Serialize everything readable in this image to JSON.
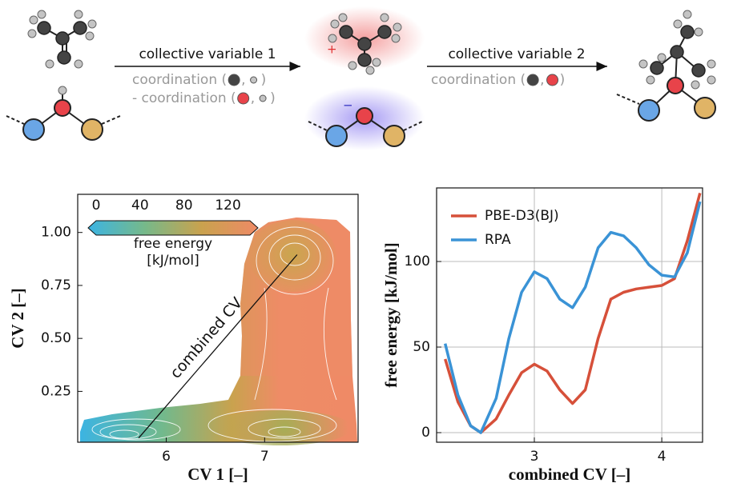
{
  "scheme": {
    "step1": {
      "label": "collective variable 1",
      "terms": [
        {
          "prefix": "coordination (",
          "sep": ",",
          "suffix": ")"
        },
        {
          "prefix": "- coordination (",
          "sep": ",",
          "suffix": ")"
        }
      ]
    },
    "step2": {
      "label": "collective variable 2",
      "terms": [
        {
          "prefix": "coordination (",
          "sep": ",",
          "suffix": ")"
        }
      ]
    },
    "charges": [
      "+",
      "−"
    ]
  },
  "chart_data": [
    {
      "type": "contour",
      "xlabel": "CV 1 [–]",
      "ylabel": "CV 2 [–]",
      "xlim": [
        5.1,
        7.95
      ],
      "ylim": [
        0.01,
        1.18
      ],
      "xticks": [
        6,
        7
      ],
      "yticks": [
        0.25,
        {
          "value": 0.5,
          "label": "0.50"
        },
        0.75,
        {
          "value": 1,
          "label": "1.00"
        }
      ],
      "colorbar": {
        "range": [
          0,
          140
        ],
        "ticks": [
          0,
          40,
          80,
          120
        ],
        "label": [
          "free energy",
          "[kJ/mol]"
        ],
        "colors": [
          "#3cb4e2",
          "#76b98a",
          "#c9a24e",
          "#ef8a66"
        ]
      },
      "annotation": {
        "text": "combined CV",
        "from": [
          5.72,
          0.03
        ],
        "to": [
          7.33,
          0.895
        ]
      }
    },
    {
      "type": "line",
      "xlabel": "combined CV [–]",
      "ylabel": "free energy [kJ/mol]",
      "xlim": [
        2.233,
        4.32
      ],
      "ylim": [
        -5.6,
        143
      ],
      "xticks": [
        3,
        4
      ],
      "yticks": [
        0,
        50,
        100
      ],
      "grid": true,
      "legend": "upper-left",
      "x": [
        2.3,
        2.4,
        2.5,
        2.58,
        2.7,
        2.8,
        2.9,
        3.0,
        3.1,
        3.2,
        3.3,
        3.4,
        3.5,
        3.6,
        3.7,
        3.8,
        3.9,
        4.0,
        4.1,
        4.2,
        4.3
      ],
      "series": [
        {
          "name": "PBE-D3(BJ)",
          "color": "#d6503a",
          "values": [
            43,
            18,
            4,
            0,
            8,
            22,
            35,
            40,
            36,
            25,
            17,
            25,
            55,
            78,
            82,
            84,
            85,
            86,
            90,
            112,
            140
          ]
        },
        {
          "name": "RPA",
          "color": "#3a93d6",
          "values": [
            52,
            22,
            4,
            0,
            20,
            55,
            82,
            94,
            90,
            78,
            73,
            85,
            108,
            117,
            115,
            108,
            98,
            92,
            91,
            105,
            135
          ]
        }
      ]
    }
  ]
}
